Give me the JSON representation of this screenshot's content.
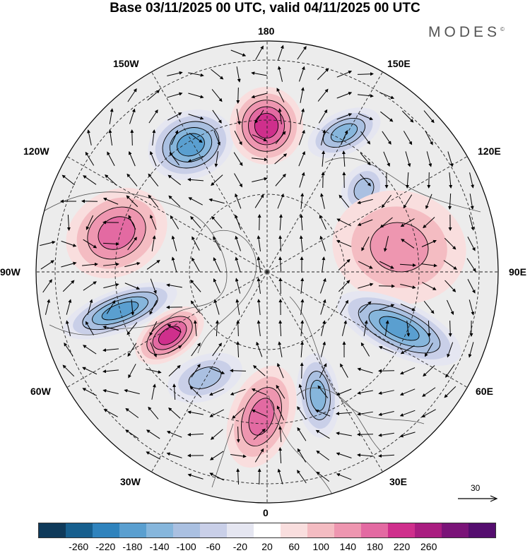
{
  "header": {
    "title": "Base 03/11/2025 00 UTC, valid 04/11/2025 00 UTC",
    "brand": "MODES",
    "brand_mark": "©"
  },
  "map": {
    "projection": "North Polar Stereographic",
    "longitude_labels": [
      "180",
      "150E",
      "120E",
      "90E",
      "60E",
      "30E",
      "0",
      "30W",
      "60W",
      "90W",
      "120W",
      "150W"
    ],
    "field": "geopotential height anomaly",
    "vectors": "wind",
    "reference_vector": {
      "label": "30"
    },
    "anomaly_centers": [
      {
        "name": "neg-alaska",
        "sign": "negative",
        "strength": 200
      },
      {
        "name": "pos-bering",
        "sign": "positive",
        "strength": 200
      },
      {
        "name": "neg-east-siberia",
        "sign": "negative",
        "strength": 140
      },
      {
        "name": "neg-laptev",
        "sign": "negative",
        "strength": 120
      },
      {
        "name": "pos-siberia",
        "sign": "positive",
        "strength": 100
      },
      {
        "name": "neg-ural",
        "sign": "negative",
        "strength": 180
      },
      {
        "name": "neg-barents",
        "sign": "negative",
        "strength": 140
      },
      {
        "name": "pos-scandinavia",
        "sign": "positive",
        "strength": 160
      },
      {
        "name": "neg-atlantic",
        "sign": "negative",
        "strength": 120
      },
      {
        "name": "pos-greenland-sea",
        "sign": "positive",
        "strength": 200
      },
      {
        "name": "neg-labrador",
        "sign": "negative",
        "strength": 200
      },
      {
        "name": "pos-canada",
        "sign": "positive",
        "strength": 140
      }
    ]
  },
  "colorbar": {
    "colors": [
      "#0f3a5a",
      "#175f8e",
      "#2f83bd",
      "#5a9fd0",
      "#86b6dc",
      "#aac0e1",
      "#c9cfe8",
      "#e5e6f1",
      "#ffffff",
      "#f9dede",
      "#f4bcc2",
      "#ee96b0",
      "#e36aa2",
      "#cf2f8c",
      "#a91d80",
      "#7a1478",
      "#540d6e"
    ],
    "ticks": [
      "-260",
      "-220",
      "-180",
      "-140",
      "-100",
      "-60",
      "-20",
      "20",
      "60",
      "100",
      "140",
      "180",
      "220",
      "260"
    ]
  }
}
